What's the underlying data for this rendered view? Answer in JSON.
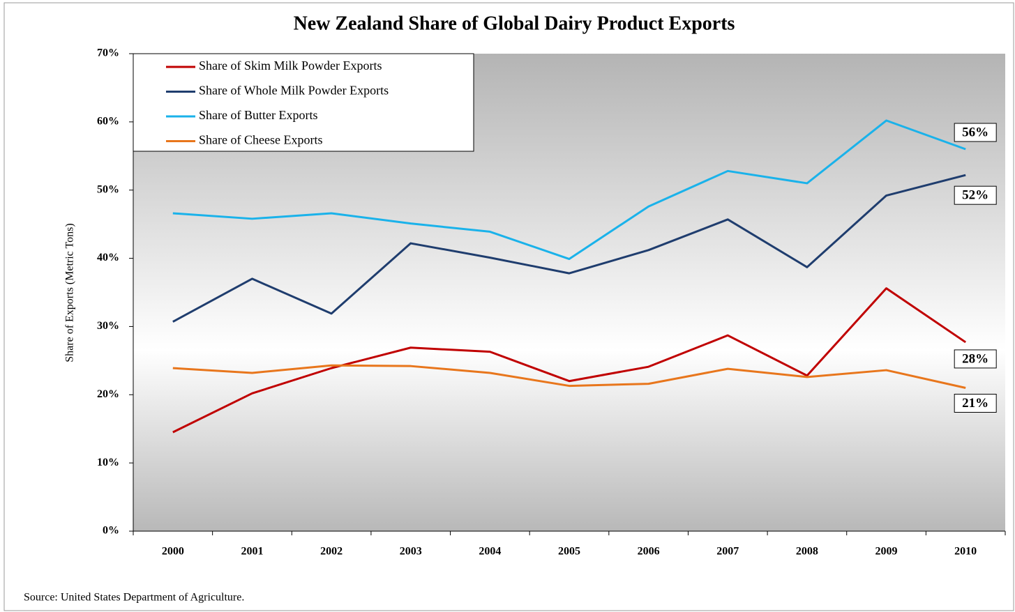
{
  "chart_data": {
    "type": "line",
    "title": "New Zealand Share of Global Dairy Product Exports",
    "y_label": "Share of Exports (Metric Tons)",
    "source": "Source:  United States Department of Agriculture.",
    "categories": [
      "2000",
      "2001",
      "2002",
      "2003",
      "2004",
      "2005",
      "2006",
      "2007",
      "2008",
      "2009",
      "2010"
    ],
    "ylim": [
      0,
      70
    ],
    "yticks": [
      {
        "value": 0,
        "label": "0%"
      },
      {
        "value": 10,
        "label": "10%"
      },
      {
        "value": 20,
        "label": "20%"
      },
      {
        "value": 30,
        "label": "30%"
      },
      {
        "value": 40,
        "label": "40%"
      },
      {
        "value": 50,
        "label": "50%"
      },
      {
        "value": 60,
        "label": "60%"
      },
      {
        "value": 70,
        "label": "70%"
      }
    ],
    "legend": "upper left",
    "series": [
      {
        "name": "Share of Skim Milk Powder Exports",
        "color": "#c00000",
        "values": [
          14.5,
          20.2,
          23.9,
          26.9,
          26.3,
          22.0,
          24.1,
          28.7,
          22.8,
          35.6,
          27.7
        ],
        "value_labels": [
          null,
          null,
          null,
          null,
          null,
          null,
          null,
          null,
          null,
          null,
          "28%"
        ]
      },
      {
        "name": "Share of Whole Milk Powder Exports",
        "color": "#1f3d6e",
        "values": [
          30.7,
          37.0,
          31.9,
          42.2,
          40.1,
          37.8,
          41.2,
          45.7,
          38.7,
          49.2,
          52.2
        ],
        "value_labels": [
          null,
          null,
          null,
          null,
          null,
          null,
          null,
          null,
          null,
          null,
          "52%"
        ]
      },
      {
        "name": "Share of Butter Exports",
        "color": "#1ab2ea",
        "values": [
          46.6,
          45.8,
          46.6,
          45.1,
          43.9,
          39.9,
          47.6,
          52.8,
          51.0,
          60.2,
          56.0
        ],
        "value_labels": [
          null,
          null,
          null,
          null,
          null,
          null,
          null,
          null,
          null,
          null,
          "56%"
        ]
      },
      {
        "name": "Share of Cheese Exports",
        "color": "#e8761c",
        "values": [
          23.9,
          23.2,
          24.3,
          24.2,
          23.2,
          21.3,
          21.6,
          23.8,
          22.6,
          23.6,
          21.0
        ],
        "value_labels": [
          null,
          null,
          null,
          null,
          null,
          null,
          null,
          null,
          null,
          null,
          "21%"
        ]
      }
    ]
  }
}
